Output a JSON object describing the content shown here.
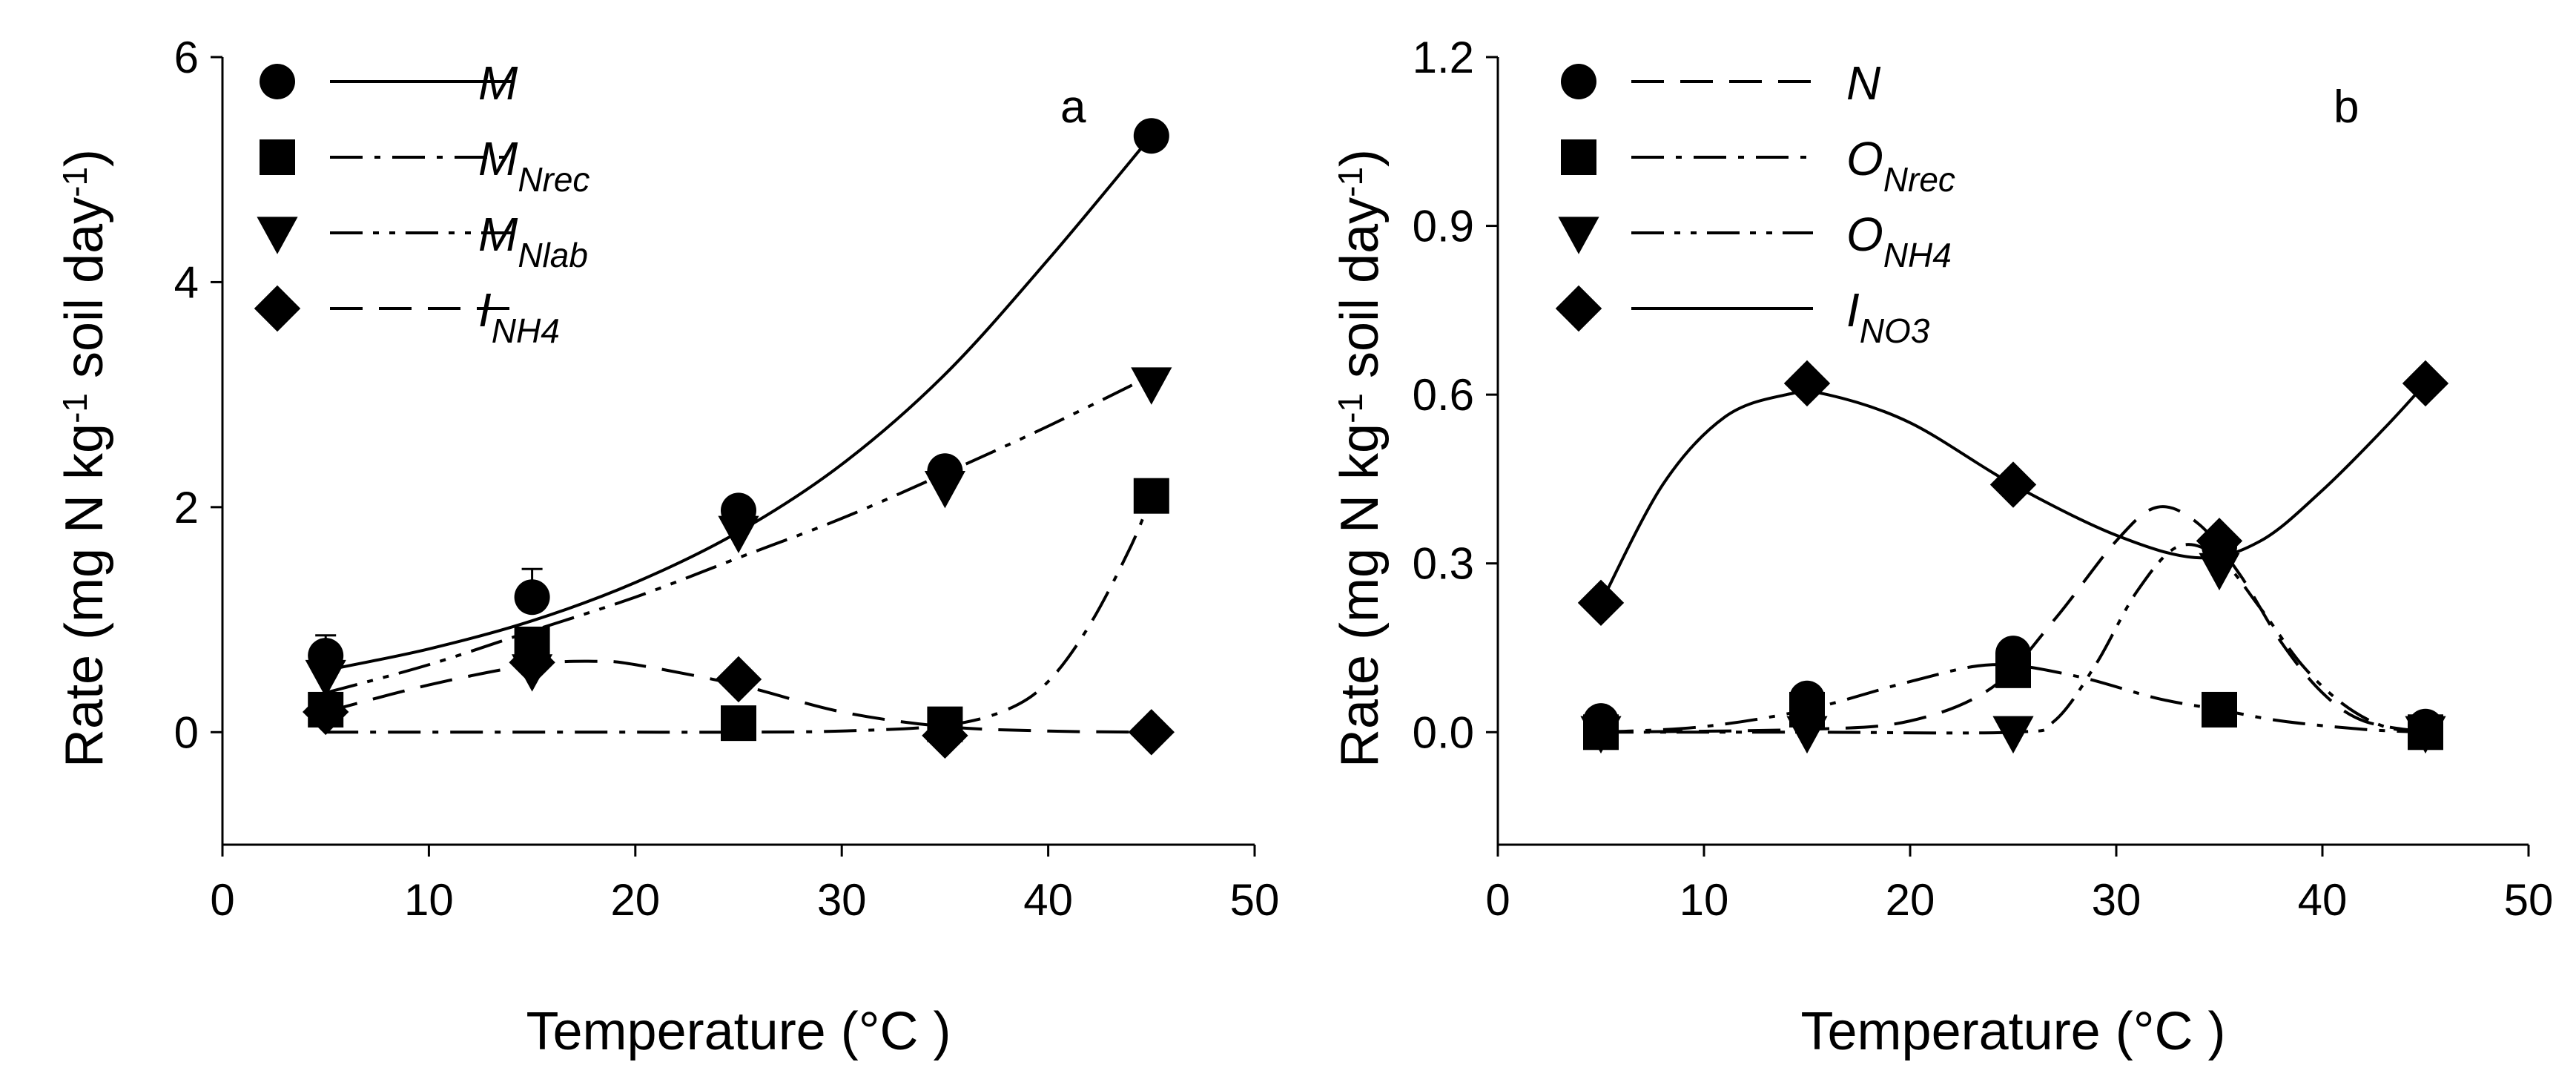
{
  "chart_data": [
    {
      "type": "scatter",
      "panel_label": "a",
      "xlabel": "Temperature (°C )",
      "ylabel": "Rate (mg N kg-1 soil day-1)",
      "ylabel_parts": {
        "pre": "Rate (mg N kg",
        "sup1": "-1",
        "mid": " soil day",
        "sup2": "-1",
        "post": ")"
      },
      "xlim": [
        0,
        50
      ],
      "ylim": [
        -1,
        6
      ],
      "xticks": [
        "0",
        "10",
        "20",
        "30",
        "40",
        "50"
      ],
      "yticks": [
        "0",
        "2",
        "4",
        "6"
      ],
      "xtick_values": [
        0,
        10,
        20,
        30,
        40,
        50
      ],
      "ytick_values": [
        0,
        2,
        4,
        6
      ],
      "legend_position": "top-left",
      "series": [
        {
          "name": "M",
          "label_main": "M",
          "label_sub": "",
          "marker": "circle",
          "line": "solid",
          "x": [
            5,
            15,
            25,
            35,
            45
          ],
          "y": [
            0.68,
            1.2,
            1.97,
            2.32,
            5.3
          ],
          "yerr": [
            0.18,
            0.25,
            0.1,
            0.08,
            0.05
          ],
          "fit_x": [
            5,
            10,
            15,
            20,
            25,
            30,
            35,
            40,
            45
          ],
          "fit_y": [
            0.55,
            0.74,
            0.99,
            1.33,
            1.78,
            2.38,
            3.18,
            4.2,
            5.3
          ]
        },
        {
          "name": "MNrec",
          "label_main": "M",
          "label_sub": "Nrec",
          "marker": "square",
          "line": "dashdot",
          "x": [
            5,
            15,
            25,
            35,
            45
          ],
          "y": [
            0.2,
            0.78,
            0.08,
            0.07,
            2.1
          ],
          "fit_x": [
            5,
            10,
            15,
            20,
            25,
            30,
            35,
            38,
            40,
            42,
            44,
            45
          ],
          "fit_y": [
            0.0,
            0.0,
            0.0,
            0.0,
            0.0,
            0.01,
            0.06,
            0.2,
            0.45,
            0.95,
            1.65,
            2.1
          ]
        },
        {
          "name": "MNlab",
          "label_main": "M",
          "label_sub": "Nlab",
          "marker": "triangle-down",
          "line": "dashdotdot",
          "x": [
            5,
            15,
            25,
            35,
            45
          ],
          "y": [
            0.5,
            0.55,
            1.78,
            2.18,
            3.1
          ],
          "fit_x": [
            5,
            10,
            15,
            20,
            25,
            30,
            35,
            40,
            45
          ],
          "fit_y": [
            0.35,
            0.6,
            0.9,
            1.2,
            1.55,
            1.9,
            2.3,
            2.72,
            3.17
          ]
        },
        {
          "name": "INH4",
          "label_main": "I",
          "label_sub": "NH4",
          "marker": "diamond",
          "line": "dashed",
          "x": [
            5,
            15,
            25,
            35,
            45
          ],
          "y": [
            0.18,
            0.62,
            0.47,
            -0.03,
            0.0
          ],
          "fit_x": [
            5,
            10,
            15,
            18,
            20,
            25,
            30,
            35,
            40,
            45
          ],
          "fit_y": [
            0.18,
            0.42,
            0.6,
            0.63,
            0.6,
            0.42,
            0.18,
            0.05,
            0.01,
            0.0
          ]
        }
      ]
    },
    {
      "type": "scatter",
      "panel_label": "b",
      "xlabel": "Temperature (°C )",
      "ylabel": "Rate (mg N kg-1 soil day-1)",
      "ylabel_parts": {
        "pre": "Rate (mg N kg",
        "sup1": "-1",
        "mid": " soil day",
        "sup2": "-1",
        "post": ")"
      },
      "xlim": [
        0,
        50
      ],
      "ylim": [
        -0.2,
        1.2
      ],
      "xticks": [
        "0",
        "10",
        "20",
        "30",
        "40",
        "50"
      ],
      "yticks": [
        "0.0",
        "0.3",
        "0.6",
        "0.9",
        "1.2"
      ],
      "xtick_values": [
        0,
        10,
        20,
        30,
        40,
        50
      ],
      "ytick_values": [
        0.0,
        0.3,
        0.6,
        0.9,
        1.2
      ],
      "legend_position": "top-left",
      "series": [
        {
          "name": "N",
          "label_main": "N",
          "label_sub": "",
          "marker": "circle",
          "line": "dashed",
          "x": [
            5,
            15,
            25,
            35,
            45
          ],
          "y": [
            0.02,
            0.06,
            0.14,
            0.33,
            0.01
          ],
          "fit_x": [
            5,
            15,
            20,
            24,
            27,
            30,
            32,
            34,
            36,
            38,
            40,
            42,
            45
          ],
          "fit_y": [
            0.0,
            0.005,
            0.02,
            0.08,
            0.2,
            0.34,
            0.4,
            0.37,
            0.28,
            0.16,
            0.07,
            0.02,
            0.0
          ]
        },
        {
          "name": "ONrec",
          "label_main": "O",
          "label_sub": "Nrec",
          "marker": "square",
          "line": "dashdot",
          "x": [
            5,
            15,
            25,
            35,
            45
          ],
          "y": [
            0.0,
            0.04,
            0.11,
            0.04,
            0.0
          ],
          "fit_x": [
            5,
            10,
            15,
            20,
            24,
            28,
            32,
            35,
            38,
            42,
            45
          ],
          "fit_y": [
            0.0,
            0.01,
            0.04,
            0.09,
            0.12,
            0.1,
            0.06,
            0.04,
            0.02,
            0.005,
            0.0
          ]
        },
        {
          "name": "ONH4",
          "label_main": "O",
          "label_sub": "NH4",
          "marker": "triangle-down",
          "line": "dashdotdot",
          "x": [
            5,
            15,
            25,
            35,
            45
          ],
          "y": [
            0.0,
            0.0,
            0.0,
            0.29,
            0.0
          ],
          "fit_x": [
            5,
            15,
            25,
            27,
            29,
            31,
            33,
            35,
            37,
            39,
            41,
            43,
            45
          ],
          "fit_y": [
            0.0,
            0.0,
            0.0,
            0.02,
            0.12,
            0.25,
            0.33,
            0.31,
            0.22,
            0.12,
            0.05,
            0.01,
            0.0
          ]
        },
        {
          "name": "INO3",
          "label_main": "I",
          "label_sub": "NO3",
          "marker": "diamond",
          "line": "solid",
          "x": [
            5,
            15,
            25,
            35,
            45
          ],
          "y": [
            0.23,
            0.62,
            0.44,
            0.34,
            0.62
          ],
          "fit_x": [
            5,
            8,
            11,
            14,
            16,
            20,
            25,
            30,
            34,
            37,
            40,
            43,
            45
          ],
          "fit_y": [
            0.23,
            0.44,
            0.56,
            0.6,
            0.6,
            0.55,
            0.44,
            0.35,
            0.31,
            0.34,
            0.43,
            0.54,
            0.62
          ]
        }
      ]
    }
  ]
}
